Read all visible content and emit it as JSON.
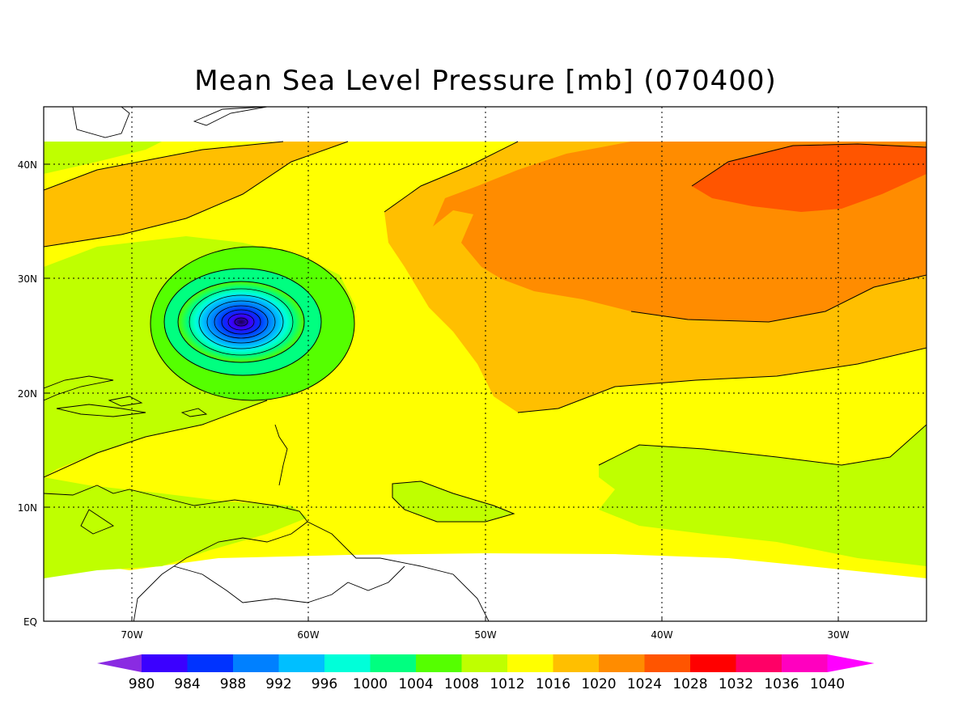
{
  "title": "Mean Sea Level Pressure [mb] (070400)",
  "axes": {
    "x_labels": [
      "70W",
      "60W",
      "50W",
      "40W",
      "30W"
    ],
    "y_labels": [
      "EQ",
      "10N",
      "20N",
      "30N",
      "40N"
    ],
    "x_values": [
      -70,
      -60,
      -50,
      -40,
      -30
    ],
    "y_values": [
      0,
      10,
      20,
      30,
      40
    ],
    "xlim": [
      -75,
      -25
    ],
    "ylim": [
      0,
      45
    ]
  },
  "colorbar": {
    "labels": [
      "980",
      "984",
      "988",
      "992",
      "996",
      "1000",
      "1004",
      "1008",
      "1012",
      "1016",
      "1020",
      "1024",
      "1028",
      "1032",
      "1036",
      "1040"
    ],
    "colors": [
      "#8a2be2",
      "#3b00ff",
      "#0033ff",
      "#0080ff",
      "#00bfff",
      "#00ffd9",
      "#00ff80",
      "#55ff00",
      "#bfff00",
      "#ffff00",
      "#ffbf00",
      "#ff8c00",
      "#ff5500",
      "#ff0000",
      "#ff0066",
      "#ff00bf",
      "#ff00ff"
    ]
  },
  "chart_data": {
    "type": "heatmap",
    "title": "Mean Sea Level Pressure [mb] (070400)",
    "units": "mb",
    "levels": [
      980,
      984,
      988,
      992,
      996,
      1000,
      1004,
      1008,
      1012,
      1016,
      1020,
      1024,
      1028,
      1032,
      1036,
      1040
    ],
    "xlim": [
      -75,
      -25
    ],
    "ylim": [
      0,
      45
    ],
    "grid": true,
    "features": [
      {
        "name": "low pressure center",
        "lon": -64,
        "lat": 26,
        "min_mb": 980
      },
      {
        "name": "high pressure ridge",
        "lon": -36,
        "lat": 38,
        "max_mb": 1028
      }
    ]
  }
}
